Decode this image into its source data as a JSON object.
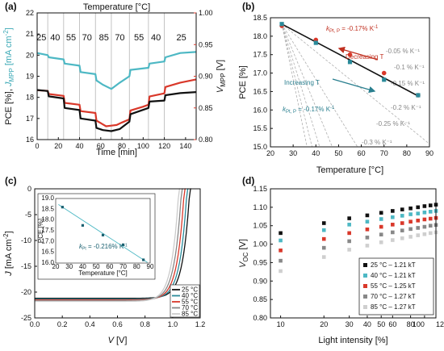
{
  "chart_data": [
    {
      "id": "a",
      "panel_label": "(a)",
      "type": "line",
      "xlabel": "Time [min]",
      "ylabel_left": "PCE [%], J_MPP [mA cm⁻²]",
      "ylabel_left_parts": [
        "PCE [%], ",
        "J",
        "MPP",
        " [mA cm",
        "-2",
        "]"
      ],
      "ylabel_right_parts": [
        "V",
        "MPP",
        " [V]"
      ],
      "xlim": [
        0,
        150
      ],
      "ylim_left": [
        16,
        22
      ],
      "ylim_right": [
        0.8,
        1.0
      ],
      "xticks": [
        0,
        20,
        40,
        60,
        80,
        100,
        120,
        140
      ],
      "yticks_left": [
        16,
        17,
        18,
        19,
        20,
        21,
        22
      ],
      "yticks_right": [
        "0.80",
        "0.85",
        "0.90",
        "0.95",
        "1.00"
      ],
      "yticks_right_values": [
        0.8,
        0.85,
        0.9,
        0.95,
        1.0
      ],
      "top_label": "Temperature [°C]",
      "segment_boundaries": [
        10,
        25,
        40,
        55,
        70,
        87,
        105,
        120
      ],
      "segment_temps": [
        {
          "t": 4,
          "label": "25"
        },
        {
          "t": 17,
          "label": "40"
        },
        {
          "t": 32,
          "label": "55"
        },
        {
          "t": 47,
          "label": "70"
        },
        {
          "t": 63,
          "label": "85"
        },
        {
          "t": 78,
          "label": "70"
        },
        {
          "t": 96,
          "label": "55"
        },
        {
          "t": 112,
          "label": "40"
        },
        {
          "t": 136,
          "label": "25"
        }
      ],
      "series": [
        {
          "key": "J_MPP",
          "axis": "left",
          "color": "#4db8c4",
          "x": [
            0,
            10,
            11,
            25,
            26,
            40,
            41,
            55,
            56,
            62,
            70,
            78,
            87,
            88,
            105,
            106,
            120,
            121,
            135,
            150
          ],
          "y": [
            20.1,
            20.0,
            19.9,
            19.8,
            19.6,
            19.5,
            19.2,
            19.1,
            18.8,
            18.6,
            18.4,
            18.7,
            19.0,
            19.3,
            19.4,
            19.6,
            19.7,
            19.9,
            20.1,
            20.15
          ]
        },
        {
          "key": "V_MPP",
          "axis": "right",
          "color": "#d9382a",
          "x": [
            0,
            10,
            11,
            25,
            26,
            40,
            41,
            55,
            56,
            60,
            65,
            70,
            75,
            80,
            87,
            88,
            100,
            105,
            106,
            120,
            121,
            135,
            150
          ],
          "y": [
            0.878,
            0.877,
            0.872,
            0.869,
            0.858,
            0.855,
            0.845,
            0.842,
            0.83,
            0.826,
            0.821,
            0.822,
            0.823,
            0.827,
            0.832,
            0.846,
            0.852,
            0.855,
            0.868,
            0.873,
            0.883,
            0.89,
            0.895
          ]
        },
        {
          "key": "PCE",
          "axis": "left",
          "color": "#111111",
          "x": [
            0,
            10,
            11,
            25,
            26,
            40,
            41,
            55,
            56,
            62,
            70,
            78,
            87,
            88,
            105,
            106,
            120,
            121,
            135,
            150
          ],
          "y": [
            18.35,
            18.3,
            18.05,
            17.95,
            17.5,
            17.4,
            17.0,
            16.9,
            16.55,
            16.45,
            16.4,
            16.5,
            16.85,
            17.2,
            17.5,
            17.8,
            17.85,
            18.1,
            18.2,
            18.25
          ]
        }
      ]
    },
    {
      "id": "b",
      "panel_label": "(b)",
      "type": "scatter",
      "xlabel": "Temperature [°C]",
      "ylabel": "PCE [%]",
      "xlim": [
        20,
        90
      ],
      "ylim": [
        15.0,
        18.5
      ],
      "xticks": [
        20,
        30,
        40,
        50,
        60,
        70,
        80,
        90
      ],
      "yticks": [
        "15.0",
        "15.5",
        "16.0",
        "16.5",
        "17.0",
        "17.5",
        "18.0",
        "18.5"
      ],
      "yticks_values": [
        15.0,
        15.5,
        16.0,
        16.5,
        17.0,
        17.5,
        18.0,
        18.5
      ],
      "series": [
        {
          "name": "Decreasing T",
          "color": "#d9382a",
          "x": [
            25,
            40,
            55,
            70,
            85
          ],
          "y": [
            18.28,
            17.9,
            17.5,
            17.0,
            16.4
          ]
        },
        {
          "name": "Increasing T",
          "color": "#2a8a9a",
          "x": [
            25,
            40,
            55,
            70,
            85
          ],
          "y": [
            18.33,
            17.82,
            17.3,
            16.82,
            16.4
          ]
        }
      ],
      "fit_line": {
        "x": [
          25,
          85
        ],
        "y": [
          18.33,
          16.38
        ],
        "color": "#111111"
      },
      "reference_lines": [
        {
          "label": "-0.05 % K⁻¹",
          "slope": -0.05
        },
        {
          "label": "-0.1 % K⁻¹",
          "slope": -0.1
        },
        {
          "label": "-0.15 % K⁻¹",
          "slope": -0.15
        },
        {
          "label": "-0.2 % K⁻¹",
          "slope": -0.2
        },
        {
          "label": "-0.25 % K⁻¹",
          "slope": -0.25
        },
        {
          "label": "-0.3 % K⁻¹",
          "slope": -0.3
        }
      ],
      "coef_parts_red": [
        "k",
        "Pt, P",
        " = -0.17% K",
        "-1"
      ],
      "coef_parts_teal": [
        "k",
        "Pt, P",
        " = -0.17% K",
        "-1"
      ],
      "arrow_decreasing_label": "Decreasing T",
      "arrow_increasing_label": "Increasing T"
    },
    {
      "id": "c",
      "panel_label": "(c)",
      "type": "line",
      "xlabel": "V [V]",
      "ylabel": "J [mA cm⁻²]",
      "ylabel_parts": [
        "J",
        " [mA cm",
        "-2",
        "]"
      ],
      "xlim": [
        0.0,
        1.2
      ],
      "ylim": [
        -25,
        0
      ],
      "xticks": [
        "0.0",
        "0.2",
        "0.4",
        "0.6",
        "0.8",
        "1.0",
        "1.2"
      ],
      "xticks_values": [
        0.0,
        0.2,
        0.4,
        0.6,
        0.8,
        1.0,
        1.2
      ],
      "yticks": [
        -25,
        -20,
        -15,
        -10,
        -5,
        0
      ],
      "legend": [
        {
          "name": "25 °C",
          "color": "#111111",
          "voc": 1.125,
          "jsc": -21.2
        },
        {
          "name": "40 °C",
          "color": "#2a8a9a",
          "voc": 1.105,
          "jsc": -21.35
        },
        {
          "name": "55 °C",
          "color": "#d9382a",
          "voc": 1.085,
          "jsc": -21.5
        },
        {
          "name": "70 °C",
          "color": "#888888",
          "voc": 1.065,
          "jsc": -21.65
        },
        {
          "name": "85 °C",
          "color": "#cccccc",
          "voc": 1.045,
          "jsc": -21.8
        }
      ],
      "inset": {
        "xlabel": "Temperature [°C]",
        "ylabel": "PCE [%]",
        "xlim": [
          20,
          90
        ],
        "ylim": [
          16.0,
          19.0
        ],
        "xticks": [
          20,
          30,
          40,
          50,
          60,
          70,
          80,
          90
        ],
        "yticks": [
          "16.0",
          "16.5",
          "17.0",
          "17.5",
          "18.0",
          "18.5",
          "19.0"
        ],
        "yticks_values": [
          16.0,
          16.5,
          17.0,
          17.5,
          18.0,
          18.5,
          19.0
        ],
        "x": [
          25,
          40,
          55,
          70,
          85
        ],
        "y": [
          18.6,
          17.75,
          17.3,
          16.85,
          16.15
        ],
        "coef_parts": [
          "k",
          "Pt",
          " = -0.216% K",
          "-1"
        ]
      }
    },
    {
      "id": "d",
      "panel_label": "(d)",
      "type": "scatter",
      "xlabel": "Light intensity [%]",
      "ylabel": "V_OC [V]",
      "ylabel_parts": [
        "V",
        "OC",
        " [V]"
      ],
      "xscale": "log",
      "xlim": [
        8.5,
        120
      ],
      "ylim": [
        0.8,
        1.15
      ],
      "xticks": [
        10,
        20,
        30,
        40,
        50,
        60,
        80,
        100,
        120
      ],
      "yticks": [
        "0.80",
        "0.85",
        "0.90",
        "0.95",
        "1.00",
        "1.05",
        "1.10",
        "1.15"
      ],
      "yticks_values": [
        0.8,
        0.85,
        0.9,
        0.95,
        1.0,
        1.05,
        1.1,
        1.15
      ],
      "x": [
        10,
        20,
        30,
        40,
        50,
        60,
        70,
        80,
        90,
        100,
        110,
        120
      ],
      "series": [
        {
          "name": "25 °C – 1.21 kT",
          "color": "#111111",
          "y": [
            1.03,
            1.057,
            1.07,
            1.078,
            1.085,
            1.09,
            1.094,
            1.097,
            1.1,
            1.103,
            1.105,
            1.107
          ]
        },
        {
          "name": "40 °C – 1.21 kT",
          "color": "#4db8c4",
          "y": [
            1.01,
            1.038,
            1.053,
            1.061,
            1.068,
            1.073,
            1.077,
            1.081,
            1.083,
            1.086,
            1.088,
            1.09
          ]
        },
        {
          "name": "55 °C – 1.25 kT",
          "color": "#d9382a",
          "y": [
            0.983,
            1.014,
            1.03,
            1.04,
            1.047,
            1.053,
            1.057,
            1.061,
            1.064,
            1.067,
            1.069,
            1.071
          ]
        },
        {
          "name": "70 °C – 1.27 kT",
          "color": "#888888",
          "y": [
            0.955,
            0.99,
            1.008,
            1.018,
            1.026,
            1.032,
            1.037,
            1.041,
            1.044,
            1.047,
            1.05,
            1.052
          ]
        },
        {
          "name": "85 °C – 1.27 kT",
          "color": "#cfcfcf",
          "y": [
            0.927,
            0.965,
            0.985,
            0.996,
            1.005,
            1.011,
            1.016,
            1.02,
            1.024,
            1.027,
            1.03,
            1.032
          ]
        }
      ]
    }
  ]
}
